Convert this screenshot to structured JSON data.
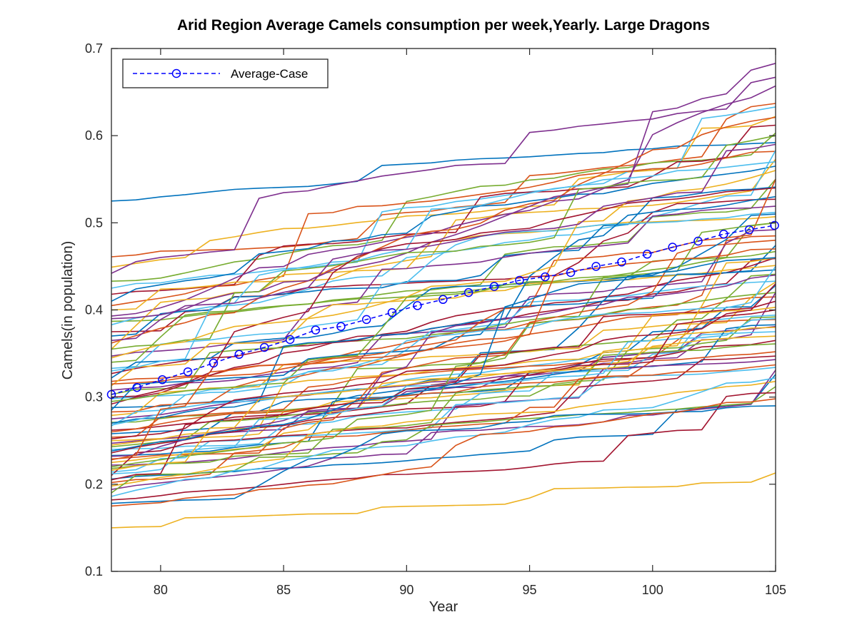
{
  "chart_data": {
    "type": "line",
    "title": "Arid Region Average Camels consumption per week,Yearly. Large Dragons",
    "xlabel": "Year",
    "ylabel": "Camels(in population)",
    "xlim": [
      78,
      105
    ],
    "ylim": [
      0.1,
      0.7
    ],
    "xticks": [
      80,
      85,
      90,
      95,
      100,
      105
    ],
    "yticks": [
      0.1,
      0.2,
      0.3,
      0.4,
      0.5,
      0.6,
      0.7
    ],
    "xtick_labels": [
      "80",
      "85",
      "90",
      "95",
      "100",
      "105"
    ],
    "ytick_labels": [
      "0.1",
      "0.2",
      "0.3",
      "0.4",
      "0.5",
      "0.6",
      "0.7"
    ],
    "grid": false,
    "legend_position": "top-left",
    "legend_entries": [
      "Average-Case"
    ],
    "palette": [
      "#0072BD",
      "#D95319",
      "#EDB120",
      "#7E2F8E",
      "#77AC30",
      "#4DBEEE",
      "#A2142F"
    ],
    "average_case": {
      "name": "Average-Case",
      "color": "#0000FF",
      "marker": "circle",
      "line_style": "dashed",
      "x": [
        78,
        79.04,
        80.07,
        81.11,
        82.15,
        83.19,
        84.22,
        85.26,
        86.3,
        87.33,
        88.37,
        89.41,
        90.44,
        91.48,
        92.52,
        93.56,
        94.59,
        95.63,
        96.67,
        97.7,
        98.74,
        99.78,
        100.81,
        101.85,
        102.89,
        103.93,
        104.96
      ],
      "y": [
        0.303,
        0.311,
        0.32,
        0.329,
        0.339,
        0.349,
        0.357,
        0.366,
        0.377,
        0.381,
        0.389,
        0.397,
        0.405,
        0.412,
        0.42,
        0.427,
        0.434,
        0.438,
        0.443,
        0.45,
        0.455,
        0.464,
        0.472,
        0.479,
        0.487,
        0.492,
        0.497
      ]
    },
    "series_start_end": [
      [
        0.525,
        0.592
      ],
      [
        0.461,
        0.637
      ],
      [
        0.449,
        0.622
      ],
      [
        0.442,
        0.667
      ],
      [
        0.433,
        0.603
      ],
      [
        0.425,
        0.633
      ],
      [
        0.418,
        0.612
      ],
      [
        0.41,
        0.565
      ],
      [
        0.405,
        0.582
      ],
      [
        0.4,
        0.573
      ],
      [
        0.393,
        0.657
      ],
      [
        0.387,
        0.55
      ],
      [
        0.383,
        0.583
      ],
      [
        0.375,
        0.527
      ],
      [
        0.37,
        0.541
      ],
      [
        0.362,
        0.621
      ],
      [
        0.355,
        0.507
      ],
      [
        0.347,
        0.519
      ],
      [
        0.34,
        0.5
      ],
      [
        0.333,
        0.512
      ],
      [
        0.327,
        0.459
      ],
      [
        0.322,
        0.474
      ],
      [
        0.318,
        0.485
      ],
      [
        0.313,
        0.451
      ],
      [
        0.308,
        0.492
      ],
      [
        0.303,
        0.467
      ],
      [
        0.298,
        0.433
      ],
      [
        0.292,
        0.46
      ],
      [
        0.288,
        0.446
      ],
      [
        0.283,
        0.415
      ],
      [
        0.279,
        0.432
      ],
      [
        0.275,
        0.42
      ],
      [
        0.271,
        0.441
      ],
      [
        0.267,
        0.394
      ],
      [
        0.262,
        0.41
      ],
      [
        0.258,
        0.428
      ],
      [
        0.254,
        0.389
      ],
      [
        0.25,
        0.403
      ],
      [
        0.247,
        0.381
      ],
      [
        0.243,
        0.392
      ],
      [
        0.24,
        0.375
      ],
      [
        0.236,
        0.365
      ],
      [
        0.233,
        0.383
      ],
      [
        0.229,
        0.352
      ],
      [
        0.225,
        0.37
      ],
      [
        0.222,
        0.343
      ],
      [
        0.218,
        0.361
      ],
      [
        0.214,
        0.334
      ],
      [
        0.21,
        0.347
      ],
      [
        0.206,
        0.326
      ],
      [
        0.202,
        0.337
      ],
      [
        0.198,
        0.318
      ],
      [
        0.194,
        0.331
      ],
      [
        0.19,
        0.312
      ],
      [
        0.186,
        0.322
      ],
      [
        0.182,
        0.305
      ],
      [
        0.178,
        0.29
      ],
      [
        0.175,
        0.298
      ],
      [
        0.15,
        0.213
      ],
      [
        0.39,
        0.683
      ],
      [
        0.355,
        0.6
      ],
      [
        0.33,
        0.57
      ],
      [
        0.3,
        0.54
      ],
      [
        0.27,
        0.53
      ],
      [
        0.26,
        0.48
      ],
      [
        0.245,
        0.46
      ],
      [
        0.232,
        0.44
      ],
      [
        0.22,
        0.42
      ],
      [
        0.212,
        0.39
      ],
      [
        0.205,
        0.4
      ],
      [
        0.285,
        0.51
      ],
      [
        0.315,
        0.55
      ],
      [
        0.345,
        0.56
      ],
      [
        0.365,
        0.59
      ],
      [
        0.295,
        0.5
      ],
      [
        0.268,
        0.45
      ],
      [
        0.252,
        0.43
      ],
      [
        0.238,
        0.46
      ],
      [
        0.228,
        0.47
      ],
      [
        0.216,
        0.38
      ]
    ]
  }
}
